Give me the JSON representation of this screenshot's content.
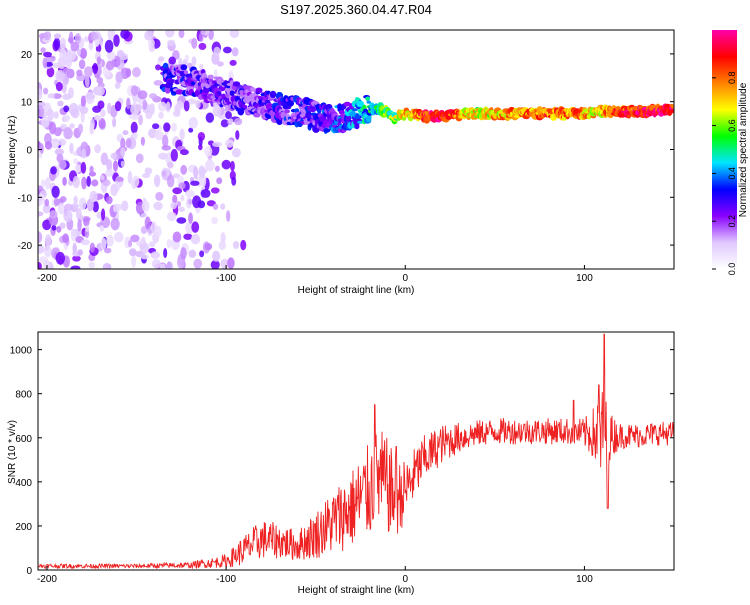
{
  "figure_title": "S197.2025.360.04.47.R04",
  "chart_data": [
    {
      "type": "heatmap",
      "title": "S197.2025.360.04.47.R04",
      "xlabel": "Height of straight line (km)",
      "ylabel": "Frequency (Hz)",
      "xlim": [
        -205,
        150
      ],
      "ylim": [
        -25,
        25
      ],
      "xticks": [
        -200,
        -100,
        0,
        100
      ],
      "xtick_labels": [
        "-200",
        "-100",
        "0",
        "100"
      ],
      "yticks": [
        -20,
        -10,
        0,
        10,
        20
      ],
      "ytick_labels": [
        "-20",
        "-10",
        "0",
        "10",
        "20"
      ],
      "colorbar": {
        "label": "Normalized spectral amplitude",
        "range": [
          0,
          1
        ],
        "ticks": [
          0,
          0.2,
          0.4,
          0.6,
          0.8
        ],
        "tick_labels": [
          "0.0",
          "0.2",
          "0.4",
          "0.6",
          "0.8"
        ],
        "colormap": [
          "#ffffff",
          "#e0c8ff",
          "#8a00ff",
          "#0000ff",
          "#00e5ff",
          "#00ff00",
          "#ffff00",
          "#ff8000",
          "#ff0000",
          "#ff00aa"
        ]
      },
      "signal_trace": {
        "description_free": true,
        "x": [
          -135,
          -120,
          -110,
          -100,
          -90,
          -80,
          -70,
          -60,
          -50,
          -40,
          -35,
          -30,
          -25,
          -20,
          -15,
          -10,
          -7,
          -5,
          -3,
          0,
          5,
          10,
          20,
          40,
          60,
          80,
          100,
          110,
          120,
          135,
          150
        ],
        "freq": [
          15,
          14.5,
          13,
          11.5,
          10.5,
          9.5,
          8.5,
          8,
          7,
          6,
          6.5,
          7,
          8,
          8.5,
          8.5,
          8,
          7,
          6.5,
          7,
          7.5,
          7.5,
          7,
          7,
          7.5,
          7.5,
          7.5,
          7.5,
          8,
          8,
          8,
          8.5
        ],
        "amplitude": [
          0.25,
          0.22,
          0.22,
          0.2,
          0.2,
          0.22,
          0.25,
          0.25,
          0.25,
          0.3,
          0.3,
          0.35,
          0.4,
          0.45,
          0.5,
          0.55,
          0.55,
          0.6,
          0.65,
          0.7,
          0.75,
          0.85,
          0.9,
          0.65,
          0.75,
          0.8,
          0.75,
          0.7,
          0.85,
          0.9,
          0.9
        ]
      },
      "noise_region_xlim": [
        -205,
        -100
      ]
    },
    {
      "type": "line",
      "xlabel": "Height of straight line (km)",
      "ylabel": "SNR (10 * v/v)",
      "xlim": [
        -205,
        150
      ],
      "ylim": [
        0,
        1080
      ],
      "xticks": [
        -200,
        -100,
        0,
        100
      ],
      "xtick_labels": [
        "-200",
        "-100",
        "0",
        "100"
      ],
      "yticks": [
        0,
        200,
        400,
        600,
        800,
        1000
      ],
      "ytick_labels": [
        "0",
        "200",
        "400",
        "600",
        "800",
        "1000"
      ],
      "series": [
        {
          "name": "SNR",
          "color": "#ee2222",
          "envelope_x": [
            -205,
            -150,
            -120,
            -100,
            -90,
            -80,
            -70,
            -60,
            -50,
            -40,
            -30,
            -25,
            -20,
            -15,
            -10,
            -5,
            0,
            10,
            20,
            30,
            40,
            50,
            60,
            70,
            80,
            90,
            100,
            105,
            110,
            115,
            120,
            130,
            140,
            150
          ],
          "envelope_mean": [
            18,
            18,
            22,
            40,
            90,
            140,
            130,
            110,
            160,
            220,
            280,
            320,
            360,
            420,
            380,
            320,
            360,
            500,
            570,
            600,
            620,
            630,
            630,
            630,
            630,
            630,
            620,
            620,
            600,
            610,
            610,
            610,
            620,
            620
          ],
          "envelope_spread": [
            10,
            10,
            14,
            30,
            70,
            90,
            80,
            70,
            110,
            150,
            180,
            200,
            220,
            240,
            220,
            180,
            140,
            110,
            90,
            70,
            60,
            60,
            60,
            60,
            60,
            60,
            70,
            120,
            230,
            100,
            60,
            55,
            55,
            55
          ],
          "peaks": [
            {
              "x": -17,
              "y": 750
            },
            {
              "x": -5,
              "y": 560
            },
            {
              "x": 94,
              "y": 770
            },
            {
              "x": 108,
              "y": 840
            },
            {
              "x": 111,
              "y": 1070
            },
            {
              "x": 113,
              "y": 280
            }
          ]
        }
      ]
    }
  ]
}
